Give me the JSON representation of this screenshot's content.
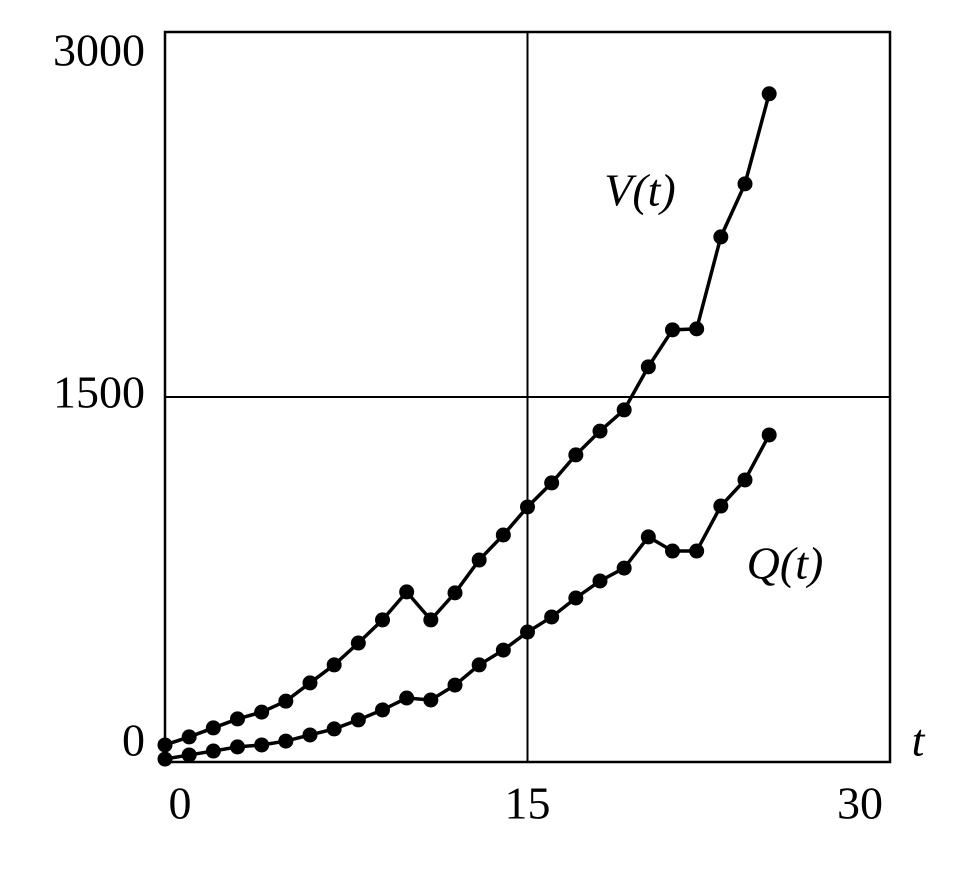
{
  "chart_data": {
    "type": "line",
    "x_label": "t",
    "x": [
      0,
      1,
      2,
      3,
      4,
      5,
      6,
      7,
      8,
      9,
      10,
      11,
      12,
      13,
      14,
      15,
      16,
      17,
      18,
      19,
      20,
      21,
      22,
      23,
      24,
      25
    ],
    "series": [
      {
        "name": "V(t)",
        "color": "#000000",
        "values": [
          70,
          103,
          140,
          177,
          205,
          250,
          325,
          399,
          489,
          584,
          699,
          584,
          695,
          830,
          933,
          1048,
          1147,
          1262,
          1360,
          1447,
          1624,
          1776,
          1780,
          2158,
          2376,
          2746
        ]
      },
      {
        "name": "Q(t)",
        "color": "#000000",
        "values": [
          12,
          29,
          45,
          62,
          70,
          86,
          111,
          136,
          173,
          214,
          263,
          255,
          316,
          399,
          460,
          534,
          596,
          674,
          744,
          797,
          925,
          867,
          867,
          1052,
          1159,
          1344
        ]
      }
    ],
    "xlim": [
      0,
      30
    ],
    "xticks": [
      0,
      15,
      30
    ],
    "ylim": [
      0,
      3000
    ],
    "yticks": [
      0,
      1500,
      3000
    ],
    "grid": true
  }
}
